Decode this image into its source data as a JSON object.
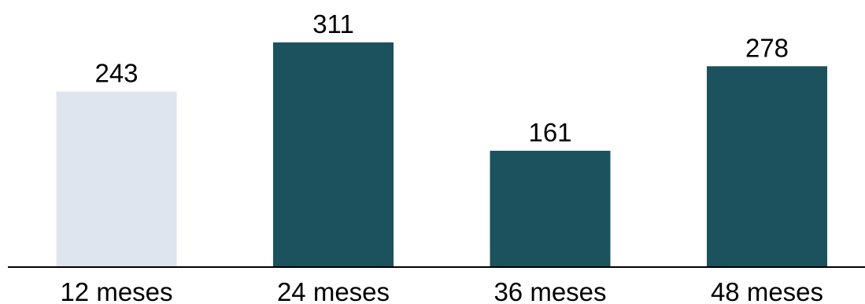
{
  "chart_data": {
    "type": "bar",
    "categories": [
      "12 meses",
      "24 meses",
      "36 meses",
      "48 meses"
    ],
    "values": [
      243,
      311,
      161,
      278
    ],
    "data_labels": [
      "243",
      "311",
      "161",
      "278"
    ],
    "ylim": [
      0,
      311
    ],
    "grid": false,
    "legend": "none",
    "title": "",
    "xlabel": "",
    "ylabel": "",
    "colors": {
      "highlight": "#dfe5ee",
      "bar": "#1c525d",
      "axis": "#000000"
    },
    "bar_colors": [
      "#dfe5ee",
      "#1c525d",
      "#1c525d",
      "#1c525d"
    ]
  }
}
